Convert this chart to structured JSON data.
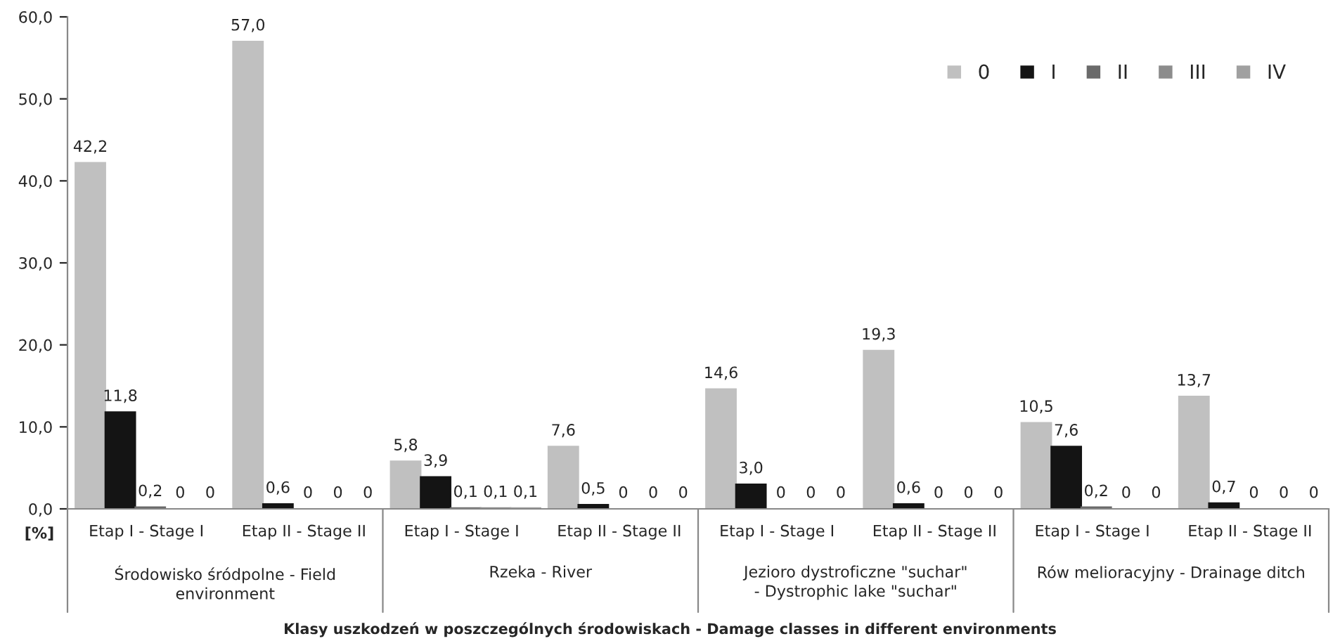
{
  "chart_data": {
    "type": "bar",
    "ylabel": "[%]",
    "categories": [
      "Etap I - Stage I",
      "Etap II - Stage II",
      "Etap I - Stage I",
      "Etap II - Stage II",
      "Etap I - Stage I",
      "Etap II - Stage II",
      "Etap I - Stage I",
      "Etap II - Stage II"
    ],
    "annotations": [
      "Środowisko śródpolne - Field\nenvironment",
      "Rzeka - River",
      "Jezioro dystroficzne \"suchar\"\n- Dystrophic lake \"suchar\"",
      "Rów melioracyjny - Drainage ditch",
      "Klasy uszkodzeń w poszczególnych środowiskach - Damage classes in different environments"
    ],
    "series": [
      {
        "name": "0",
        "color": "#c0c0c0",
        "values": [
          42.2,
          57.0,
          5.8,
          7.6,
          14.6,
          19.3,
          10.5,
          13.7
        ],
        "value_labels": [
          "42,2",
          "57,0",
          "5,8",
          "7,6",
          "14,6",
          "19,3",
          "10,5",
          "13,7"
        ]
      },
      {
        "name": "I",
        "color": "#141414",
        "values": [
          11.8,
          0.6,
          3.9,
          0.5,
          3.0,
          0.6,
          7.6,
          0.7
        ],
        "value_labels": [
          "11,8",
          "0,6",
          "3,9",
          "0,5",
          "3,0",
          "0,6",
          "7,6",
          "0,7"
        ]
      },
      {
        "name": "II",
        "color": "#6a6a6a",
        "values": [
          0.2,
          0,
          0.1,
          0,
          0,
          0,
          0.2,
          0
        ],
        "value_labels": [
          "0,2",
          "0",
          "0,1",
          "0",
          "0",
          "0",
          "0,2",
          "0"
        ]
      },
      {
        "name": "III",
        "color": "#8c8c8c",
        "values": [
          0,
          0,
          0.1,
          0,
          0,
          0,
          0,
          0
        ],
        "value_labels": [
          "0",
          "0",
          "0,1",
          "0",
          "0",
          "0",
          "0",
          "0"
        ]
      },
      {
        "name": "IV",
        "color": "#a0a0a0",
        "values": [
          0,
          0,
          0.1,
          0,
          0,
          0,
          0,
          0
        ],
        "value_labels": [
          "0",
          "0",
          "0,1",
          "0",
          "0",
          "0",
          "0",
          "0"
        ]
      }
    ],
    "ylim": [
      0,
      60
    ],
    "yticks": [
      {
        "value": 0,
        "label": "0,0"
      },
      {
        "value": 10,
        "label": "10,0"
      },
      {
        "value": 20,
        "label": "20,0"
      },
      {
        "value": 30,
        "label": "30,0"
      },
      {
        "value": 40,
        "label": "40,0"
      },
      {
        "value": 50,
        "label": "50,0"
      },
      {
        "value": 60,
        "label": "60,0"
      }
    ],
    "grid": false,
    "legend": "top right"
  }
}
